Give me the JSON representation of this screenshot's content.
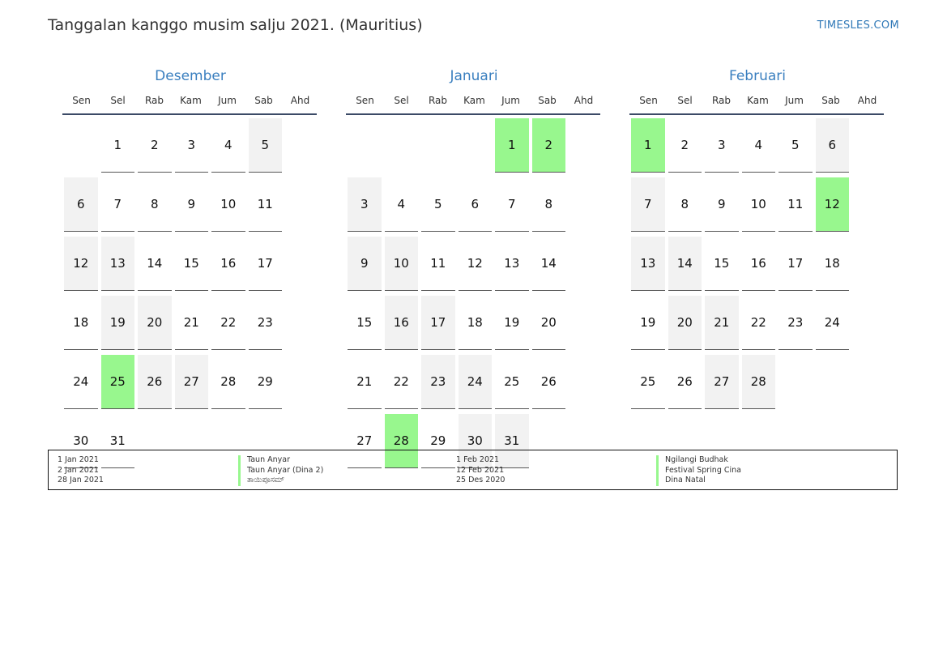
{
  "title": "Tanggalan kanggo musim salju 2021. (Mauritius)",
  "brand": "TIMESLES.COM",
  "colors": {
    "holiday": "#98f78e",
    "weekend": "#f2f2f2",
    "month_title": "#3a7fbf",
    "rule": "#3b4a66"
  },
  "weekdays": [
    "Sen",
    "Sel",
    "Rab",
    "Kam",
    "Jum",
    "Sab",
    "Ahd"
  ],
  "months": [
    {
      "name": "Desember",
      "offset": 1,
      "days": 31,
      "holidays": [
        25
      ]
    },
    {
      "name": "Januari",
      "offset": 4,
      "days": 31,
      "holidays": [
        1,
        2,
        28
      ]
    },
    {
      "name": "Februari",
      "offset": 0,
      "days": 28,
      "holidays": [
        1,
        12
      ]
    }
  ],
  "legend": {
    "left": [
      {
        "date": "1 Jan 2021",
        "name": "Taun Anyar"
      },
      {
        "date": "2 Jan 2021",
        "name": "Taun Anyar (Dina 2)"
      },
      {
        "date": "28 Jan 2021",
        "name": "ತಾಯಿಪೂಸಮ್"
      }
    ],
    "right": [
      {
        "date": "1 Feb 2021",
        "name": "Ngilangi Budhak"
      },
      {
        "date": "12 Feb 2021",
        "name": "Festival Spring Cina"
      },
      {
        "date": "25 Des 2020",
        "name": "Dina Natal"
      }
    ]
  }
}
